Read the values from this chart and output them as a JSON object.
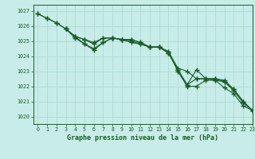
{
  "title": "Graphe pression niveau de la mer (hPa)",
  "background_color": "#c8ece8",
  "grid_color": "#a8d8d0",
  "line_color": "#1a5c28",
  "xlim": [
    -0.5,
    23
  ],
  "ylim": [
    1019.5,
    1027.4
  ],
  "yticks": [
    1020,
    1021,
    1022,
    1023,
    1024,
    1025,
    1026,
    1027
  ],
  "xticks": [
    0,
    1,
    2,
    3,
    4,
    5,
    6,
    7,
    8,
    9,
    10,
    11,
    12,
    13,
    14,
    15,
    16,
    17,
    18,
    19,
    20,
    21,
    22,
    23
  ],
  "series": [
    {
      "x": [
        0,
        1,
        2,
        3,
        4,
        5,
        6,
        7,
        8,
        9,
        10,
        11,
        12,
        13,
        14,
        15,
        16,
        17,
        18,
        19,
        20,
        21,
        22,
        23
      ],
      "y": [
        1026.8,
        1026.5,
        1026.2,
        1025.8,
        1025.3,
        1025.1,
        1024.9,
        1025.2,
        1025.2,
        1025.1,
        1025.1,
        1024.9,
        1024.6,
        1024.6,
        1024.3,
        1023.2,
        1023.0,
        1022.5,
        1022.5,
        1022.5,
        1022.4,
        1021.8,
        1021.0,
        1020.4
      ]
    },
    {
      "x": [
        0,
        1,
        2,
        3,
        4,
        5,
        6,
        7,
        8,
        9,
        10,
        11,
        12,
        13,
        14,
        15,
        16,
        17,
        18,
        19,
        20,
        21,
        22,
        23
      ],
      "y": [
        1026.8,
        1026.5,
        1026.2,
        1025.8,
        1025.3,
        1025.1,
        1024.8,
        1025.2,
        1025.2,
        1025.1,
        1025.1,
        1024.9,
        1024.6,
        1024.6,
        1024.3,
        1023.0,
        1022.0,
        1022.0,
        1022.4,
        1022.4,
        1021.9,
        1021.5,
        1020.7,
        1020.4
      ]
    },
    {
      "x": [
        3,
        4,
        5,
        6,
        7,
        8,
        9,
        10,
        11,
        12,
        13,
        14,
        15,
        16,
        17,
        18,
        19,
        20,
        21,
        22,
        23
      ],
      "y": [
        1025.8,
        1025.3,
        1024.8,
        1024.5,
        1024.9,
        1025.2,
        1025.1,
        1025.0,
        1024.8,
        1024.6,
        1024.6,
        1024.2,
        1023.1,
        1022.1,
        1022.5,
        1022.5,
        1022.5,
        1022.3,
        1021.8,
        1021.0,
        1020.4
      ]
    },
    {
      "x": [
        3,
        4,
        5,
        6,
        7,
        8,
        9,
        10,
        11,
        12,
        13,
        14,
        15,
        16,
        17,
        18,
        19,
        20,
        21,
        22,
        23
      ],
      "y": [
        1025.8,
        1025.2,
        1024.8,
        1024.4,
        1024.9,
        1025.2,
        1025.1,
        1024.9,
        1024.8,
        1024.6,
        1024.6,
        1024.2,
        1023.1,
        1022.1,
        1023.1,
        1022.5,
        1022.4,
        1022.3,
        1021.7,
        1020.9,
        1020.4
      ]
    }
  ]
}
